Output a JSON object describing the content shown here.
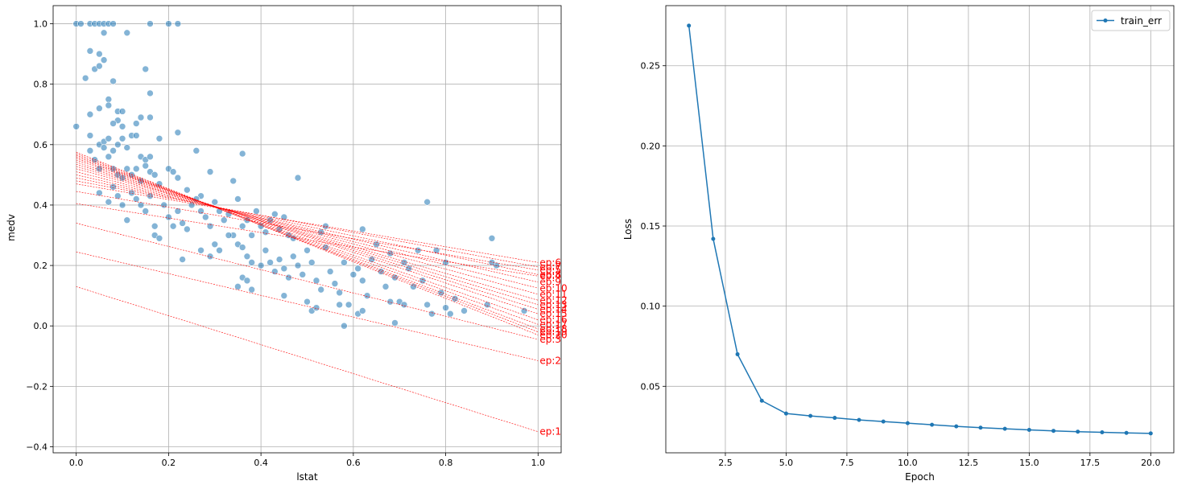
{
  "chart_data": [
    {
      "type": "scatter",
      "title": "",
      "xlabel": "lstat",
      "ylabel": "medv",
      "xlim": [
        -0.05,
        1.05
      ],
      "ylim": [
        -0.42,
        1.06
      ],
      "xticks": [
        0.0,
        0.2,
        0.4,
        0.6,
        0.8,
        1.0
      ],
      "xtick_labels": [
        "0.0",
        "0.2",
        "0.4",
        "0.6",
        "0.8",
        "1.0"
      ],
      "yticks": [
        -0.4,
        -0.2,
        0.0,
        0.2,
        0.4,
        0.6,
        0.8,
        1.0
      ],
      "ytick_labels": [
        "−0.4",
        "−0.2",
        "0.0",
        "0.2",
        "0.4",
        "0.6",
        "0.8",
        "1.0"
      ],
      "grid": true,
      "colors": {
        "points": "#1f77b4",
        "lines": "#ff0000"
      },
      "points": [
        [
          0.0,
          1.0
        ],
        [
          0.01,
          1.0
        ],
        [
          0.03,
          1.0
        ],
        [
          0.04,
          1.0
        ],
        [
          0.05,
          1.0
        ],
        [
          0.06,
          1.0
        ],
        [
          0.07,
          1.0
        ],
        [
          0.08,
          1.0
        ],
        [
          0.16,
          1.0
        ],
        [
          0.2,
          1.0
        ],
        [
          0.22,
          1.0
        ],
        [
          0.11,
          0.97
        ],
        [
          0.02,
          0.82
        ],
        [
          0.03,
          0.91
        ],
        [
          0.04,
          0.85
        ],
        [
          0.05,
          0.86
        ],
        [
          0.05,
          0.9
        ],
        [
          0.06,
          0.88
        ],
        [
          0.06,
          0.97
        ],
        [
          0.07,
          0.75
        ],
        [
          0.08,
          0.81
        ],
        [
          0.15,
          0.85
        ],
        [
          0.16,
          0.77
        ],
        [
          0.0,
          0.66
        ],
        [
          0.03,
          0.7
        ],
        [
          0.05,
          0.72
        ],
        [
          0.07,
          0.73
        ],
        [
          0.09,
          0.71
        ],
        [
          0.1,
          0.71
        ],
        [
          0.09,
          0.68
        ],
        [
          0.08,
          0.67
        ],
        [
          0.1,
          0.66
        ],
        [
          0.13,
          0.67
        ],
        [
          0.14,
          0.69
        ],
        [
          0.16,
          0.69
        ],
        [
          0.12,
          0.63
        ],
        [
          0.13,
          0.63
        ],
        [
          0.18,
          0.62
        ],
        [
          0.22,
          0.64
        ],
        [
          0.03,
          0.63
        ],
        [
          0.05,
          0.6
        ],
        [
          0.06,
          0.61
        ],
        [
          0.07,
          0.62
        ],
        [
          0.08,
          0.58
        ],
        [
          0.09,
          0.6
        ],
        [
          0.1,
          0.62
        ],
        [
          0.11,
          0.59
        ],
        [
          0.14,
          0.56
        ],
        [
          0.15,
          0.55
        ],
        [
          0.16,
          0.56
        ],
        [
          0.26,
          0.58
        ],
        [
          0.36,
          0.57
        ],
        [
          0.03,
          0.58
        ],
        [
          0.04,
          0.55
        ],
        [
          0.05,
          0.52
        ],
        [
          0.06,
          0.59
        ],
        [
          0.07,
          0.56
        ],
        [
          0.08,
          0.52
        ],
        [
          0.09,
          0.5
        ],
        [
          0.1,
          0.49
        ],
        [
          0.11,
          0.52
        ],
        [
          0.12,
          0.5
        ],
        [
          0.13,
          0.52
        ],
        [
          0.14,
          0.48
        ],
        [
          0.15,
          0.53
        ],
        [
          0.16,
          0.51
        ],
        [
          0.17,
          0.5
        ],
        [
          0.18,
          0.47
        ],
        [
          0.2,
          0.52
        ],
        [
          0.21,
          0.51
        ],
        [
          0.22,
          0.49
        ],
        [
          0.24,
          0.45
        ],
        [
          0.27,
          0.43
        ],
        [
          0.29,
          0.51
        ],
        [
          0.34,
          0.48
        ],
        [
          0.48,
          0.49
        ],
        [
          0.05,
          0.44
        ],
        [
          0.07,
          0.41
        ],
        [
          0.08,
          0.46
        ],
        [
          0.09,
          0.43
        ],
        [
          0.1,
          0.4
        ],
        [
          0.11,
          0.35
        ],
        [
          0.12,
          0.44
        ],
        [
          0.13,
          0.42
        ],
        [
          0.14,
          0.4
        ],
        [
          0.15,
          0.38
        ],
        [
          0.16,
          0.43
        ],
        [
          0.17,
          0.33
        ],
        [
          0.17,
          0.3
        ],
        [
          0.18,
          0.29
        ],
        [
          0.19,
          0.4
        ],
        [
          0.2,
          0.36
        ],
        [
          0.21,
          0.33
        ],
        [
          0.22,
          0.38
        ],
        [
          0.23,
          0.34
        ],
        [
          0.24,
          0.32
        ],
        [
          0.25,
          0.4
        ],
        [
          0.26,
          0.42
        ],
        [
          0.27,
          0.38
        ],
        [
          0.28,
          0.36
        ],
        [
          0.29,
          0.33
        ],
        [
          0.3,
          0.41
        ],
        [
          0.31,
          0.38
        ],
        [
          0.32,
          0.35
        ],
        [
          0.33,
          0.37
        ],
        [
          0.34,
          0.3
        ],
        [
          0.35,
          0.42
        ],
        [
          0.36,
          0.33
        ],
        [
          0.37,
          0.35
        ],
        [
          0.38,
          0.3
        ],
        [
          0.39,
          0.38
        ],
        [
          0.4,
          0.33
        ],
        [
          0.41,
          0.31
        ],
        [
          0.42,
          0.35
        ],
        [
          0.43,
          0.37
        ],
        [
          0.44,
          0.32
        ],
        [
          0.45,
          0.36
        ],
        [
          0.46,
          0.3
        ],
        [
          0.47,
          0.29
        ],
        [
          0.23,
          0.22
        ],
        [
          0.27,
          0.25
        ],
        [
          0.29,
          0.23
        ],
        [
          0.3,
          0.27
        ],
        [
          0.31,
          0.25
        ],
        [
          0.33,
          0.3
        ],
        [
          0.35,
          0.27
        ],
        [
          0.36,
          0.26
        ],
        [
          0.37,
          0.23
        ],
        [
          0.38,
          0.21
        ],
        [
          0.36,
          0.16
        ],
        [
          0.35,
          0.13
        ],
        [
          0.37,
          0.15
        ],
        [
          0.38,
          0.12
        ],
        [
          0.4,
          0.2
        ],
        [
          0.41,
          0.25
        ],
        [
          0.42,
          0.21
        ],
        [
          0.43,
          0.18
        ],
        [
          0.44,
          0.22
        ],
        [
          0.45,
          0.19
        ],
        [
          0.46,
          0.16
        ],
        [
          0.47,
          0.23
        ],
        [
          0.48,
          0.2
        ],
        [
          0.49,
          0.17
        ],
        [
          0.5,
          0.25
        ],
        [
          0.51,
          0.21
        ],
        [
          0.45,
          0.1
        ],
        [
          0.52,
          0.15
        ],
        [
          0.53,
          0.12
        ],
        [
          0.54,
          0.26
        ],
        [
          0.55,
          0.18
        ],
        [
          0.56,
          0.14
        ],
        [
          0.57,
          0.11
        ],
        [
          0.58,
          0.21
        ],
        [
          0.59,
          0.07
        ],
        [
          0.6,
          0.17
        ],
        [
          0.61,
          0.19
        ],
        [
          0.62,
          0.15
        ],
        [
          0.63,
          0.1
        ],
        [
          0.64,
          0.22
        ],
        [
          0.65,
          0.27
        ],
        [
          0.66,
          0.18
        ],
        [
          0.67,
          0.13
        ],
        [
          0.68,
          0.24
        ],
        [
          0.69,
          0.16
        ],
        [
          0.7,
          0.08
        ],
        [
          0.71,
          0.21
        ],
        [
          0.72,
          0.19
        ],
        [
          0.73,
          0.13
        ],
        [
          0.74,
          0.25
        ],
        [
          0.75,
          0.15
        ],
        [
          0.53,
          0.31
        ],
        [
          0.54,
          0.33
        ],
        [
          0.62,
          0.32
        ],
        [
          0.5,
          0.08
        ],
        [
          0.51,
          0.05
        ],
        [
          0.52,
          0.06
        ],
        [
          0.57,
          0.07
        ],
        [
          0.58,
          0.0
        ],
        [
          0.61,
          0.04
        ],
        [
          0.62,
          0.05
        ],
        [
          0.68,
          0.08
        ],
        [
          0.69,
          0.01
        ],
        [
          0.71,
          0.07
        ],
        [
          0.76,
          0.07
        ],
        [
          0.77,
          0.04
        ],
        [
          0.78,
          0.25
        ],
        [
          0.8,
          0.06
        ],
        [
          0.81,
          0.04
        ],
        [
          0.84,
          0.05
        ],
        [
          0.89,
          0.07
        ],
        [
          0.79,
          0.11
        ],
        [
          0.8,
          0.21
        ],
        [
          0.82,
          0.09
        ],
        [
          0.9,
          0.29
        ],
        [
          0.91,
          0.2
        ],
        [
          0.9,
          0.21
        ],
        [
          0.97,
          0.05
        ],
        [
          0.76,
          0.41
        ]
      ],
      "lines": [
        {
          "label": "ep:1",
          "y0": 0.13,
          "y1": -0.35
        },
        {
          "label": "ep:2",
          "y0": 0.245,
          "y1": -0.115
        },
        {
          "label": "ep:3",
          "y0": 0.34,
          "y1": -0.045
        },
        {
          "label": "ep:4",
          "y0": 0.405,
          "y1": 0.165
        },
        {
          "label": "ep:5",
          "y0": 0.445,
          "y1": 0.185
        },
        {
          "label": "ep:6",
          "y0": 0.47,
          "y1": 0.21
        },
        {
          "label": "ep:7",
          "y0": 0.48,
          "y1": 0.195
        },
        {
          "label": "ep:8",
          "y0": 0.49,
          "y1": 0.17
        },
        {
          "label": "ep:9",
          "y0": 0.5,
          "y1": 0.145
        },
        {
          "label": "ep:10",
          "y0": 0.51,
          "y1": 0.125
        },
        {
          "label": "ep:11",
          "y0": 0.52,
          "y1": 0.105
        },
        {
          "label": "ep:12",
          "y0": 0.528,
          "y1": 0.085
        },
        {
          "label": "ep:13",
          "y0": 0.535,
          "y1": 0.07
        },
        {
          "label": "ep:14",
          "y0": 0.542,
          "y1": 0.055
        },
        {
          "label": "ep:15",
          "y0": 0.549,
          "y1": 0.04
        },
        {
          "label": "ep:16",
          "y0": 0.555,
          "y1": 0.02
        },
        {
          "label": "ep:17",
          "y0": 0.56,
          "y1": 0.005
        },
        {
          "label": "ep:18",
          "y0": 0.565,
          "y1": -0.01
        },
        {
          "label": "ep:19",
          "y0": 0.57,
          "y1": -0.02
        },
        {
          "label": "ep:20",
          "y0": 0.575,
          "y1": -0.03
        }
      ]
    },
    {
      "type": "line",
      "title": "",
      "xlabel": "Epoch",
      "ylabel": "Loss",
      "xlim": [
        0.05,
        20.95
      ],
      "ylim": [
        0.0085,
        0.2875
      ],
      "xticks": [
        2.5,
        5.0,
        7.5,
        10.0,
        12.5,
        15.0,
        17.5,
        20.0
      ],
      "xtick_labels": [
        "2.5",
        "5.0",
        "7.5",
        "10.0",
        "12.5",
        "15.0",
        "17.5",
        "20.0"
      ],
      "yticks": [
        0.05,
        0.1,
        0.15,
        0.2,
        0.25
      ],
      "ytick_labels": [
        "0.05",
        "0.10",
        "0.15",
        "0.20",
        "0.25"
      ],
      "grid": true,
      "legend_position": "top-right",
      "colors": {
        "line": "#1f77b4"
      },
      "series": [
        {
          "name": "train_err",
          "x": [
            1,
            2,
            3,
            4,
            5,
            6,
            7,
            8,
            9,
            10,
            11,
            12,
            13,
            14,
            15,
            16,
            17,
            18,
            19,
            20
          ],
          "values": [
            0.275,
            0.142,
            0.07,
            0.041,
            0.033,
            0.0315,
            0.0303,
            0.029,
            0.028,
            0.027,
            0.026,
            0.025,
            0.0242,
            0.0235,
            0.0228,
            0.0222,
            0.0217,
            0.0213,
            0.0209,
            0.0206
          ]
        }
      ]
    }
  ]
}
